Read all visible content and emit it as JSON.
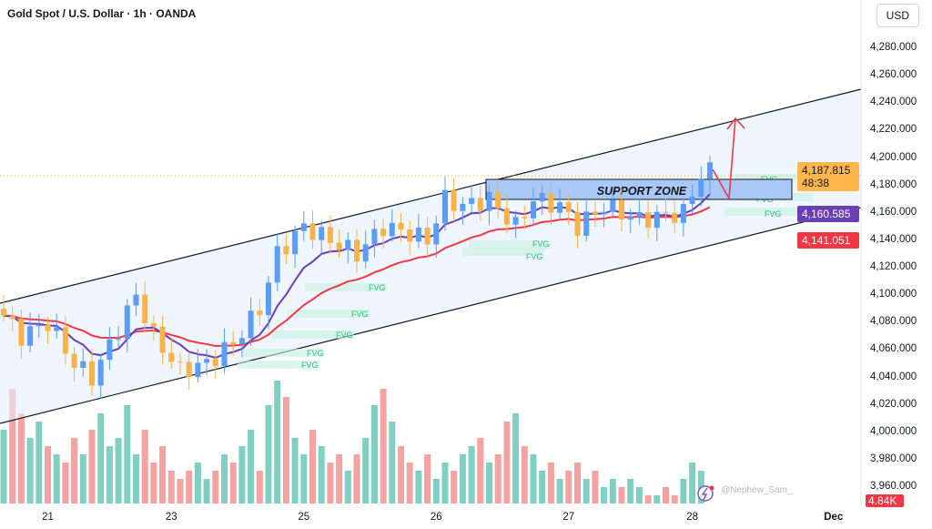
{
  "header": {
    "title": "Gold Spot / U.S. Dollar · 1h · OANDA",
    "currency_button": "USD"
  },
  "price_labels": {
    "last": "4,187.815",
    "countdown": "48:38",
    "ma_fast": "4,160.585",
    "ma_slow": "4,141.051",
    "volume": "4.84K"
  },
  "watermark": "@Nephew_Sam_",
  "annotations": {
    "support_zone": "SUPPORT ZONE",
    "fvg": [
      "FVG",
      "FVG",
      "FVG",
      "FVG",
      "FVG",
      "FVG",
      "FVG",
      "FVG",
      "FVG",
      "FVG"
    ]
  },
  "colors": {
    "up": "#5b9cf6",
    "down": "#f7b24a",
    "ma_fast": "#6a3fb5",
    "ma_slow": "#f23645",
    "vol_up": "#7fcfc2",
    "vol_down": "#f4a2a2",
    "last": "#ffb74d"
  },
  "chart_data": {
    "type": "candlestick",
    "title": "Gold Spot / U.S. Dollar · 1h · OANDA",
    "yticks": [
      "4,280.000",
      "4,260.000",
      "4,240.000",
      "4,220.000",
      "4,200.000",
      "4,180.000",
      "4,160.000",
      "4,140.000",
      "4,120.000",
      "4,100.000",
      "4,080.000",
      "4,060.000",
      "4,040.000",
      "4,020.000",
      "4,000.000",
      "3,980.000",
      "3,960.000"
    ],
    "ylim": [
      3960,
      4280
    ],
    "xticks": [
      {
        "label": "21",
        "i": 5
      },
      {
        "label": "23",
        "i": 19
      },
      {
        "label": "25",
        "i": 34
      },
      {
        "label": "26",
        "i": 49
      },
      {
        "label": "27",
        "i": 64
      },
      {
        "label": "28",
        "i": 78
      },
      {
        "label": "Dec",
        "i": 94
      }
    ],
    "close_keypoints": [
      [
        0,
        4085
      ],
      [
        2,
        4070
      ],
      [
        5,
        4080
      ],
      [
        8,
        4050
      ],
      [
        10,
        4040
      ],
      [
        13,
        4075
      ],
      [
        15,
        4100
      ],
      [
        17,
        4070
      ],
      [
        20,
        4045
      ],
      [
        23,
        4050
      ],
      [
        26,
        4065
      ],
      [
        29,
        4090
      ],
      [
        31,
        4130
      ],
      [
        34,
        4150
      ],
      [
        37,
        4140
      ],
      [
        40,
        4130
      ],
      [
        43,
        4150
      ],
      [
        46,
        4145
      ],
      [
        48,
        4140
      ],
      [
        50,
        4170
      ],
      [
        52,
        4165
      ],
      [
        55,
        4170
      ],
      [
        58,
        4150
      ],
      [
        60,
        4170
      ],
      [
        63,
        4165
      ],
      [
        65,
        4150
      ],
      [
        68,
        4165
      ],
      [
        72,
        4155
      ],
      [
        77,
        4160
      ],
      [
        79,
        4188
      ],
      [
        80,
        4190
      ]
    ],
    "volume_k": [
      9,
      14,
      11,
      8,
      10,
      7,
      6,
      5,
      8,
      6,
      9,
      11,
      7,
      8,
      12,
      6,
      9,
      5,
      7,
      4,
      3,
      4,
      5,
      3,
      4,
      6,
      5,
      7,
      9,
      4,
      12,
      15,
      13,
      8,
      6,
      9,
      7,
      5,
      6,
      4,
      6,
      8,
      12,
      14,
      10,
      7,
      5,
      4,
      6,
      3,
      5,
      4,
      6,
      7,
      8,
      5,
      6,
      10,
      11,
      7,
      6,
      4,
      5,
      3,
      4,
      5,
      3,
      4,
      2,
      3,
      2,
      3,
      2,
      1,
      1,
      2,
      1,
      3,
      5,
      4
    ],
    "support_zone": [
      4175,
      4190
    ]
  }
}
